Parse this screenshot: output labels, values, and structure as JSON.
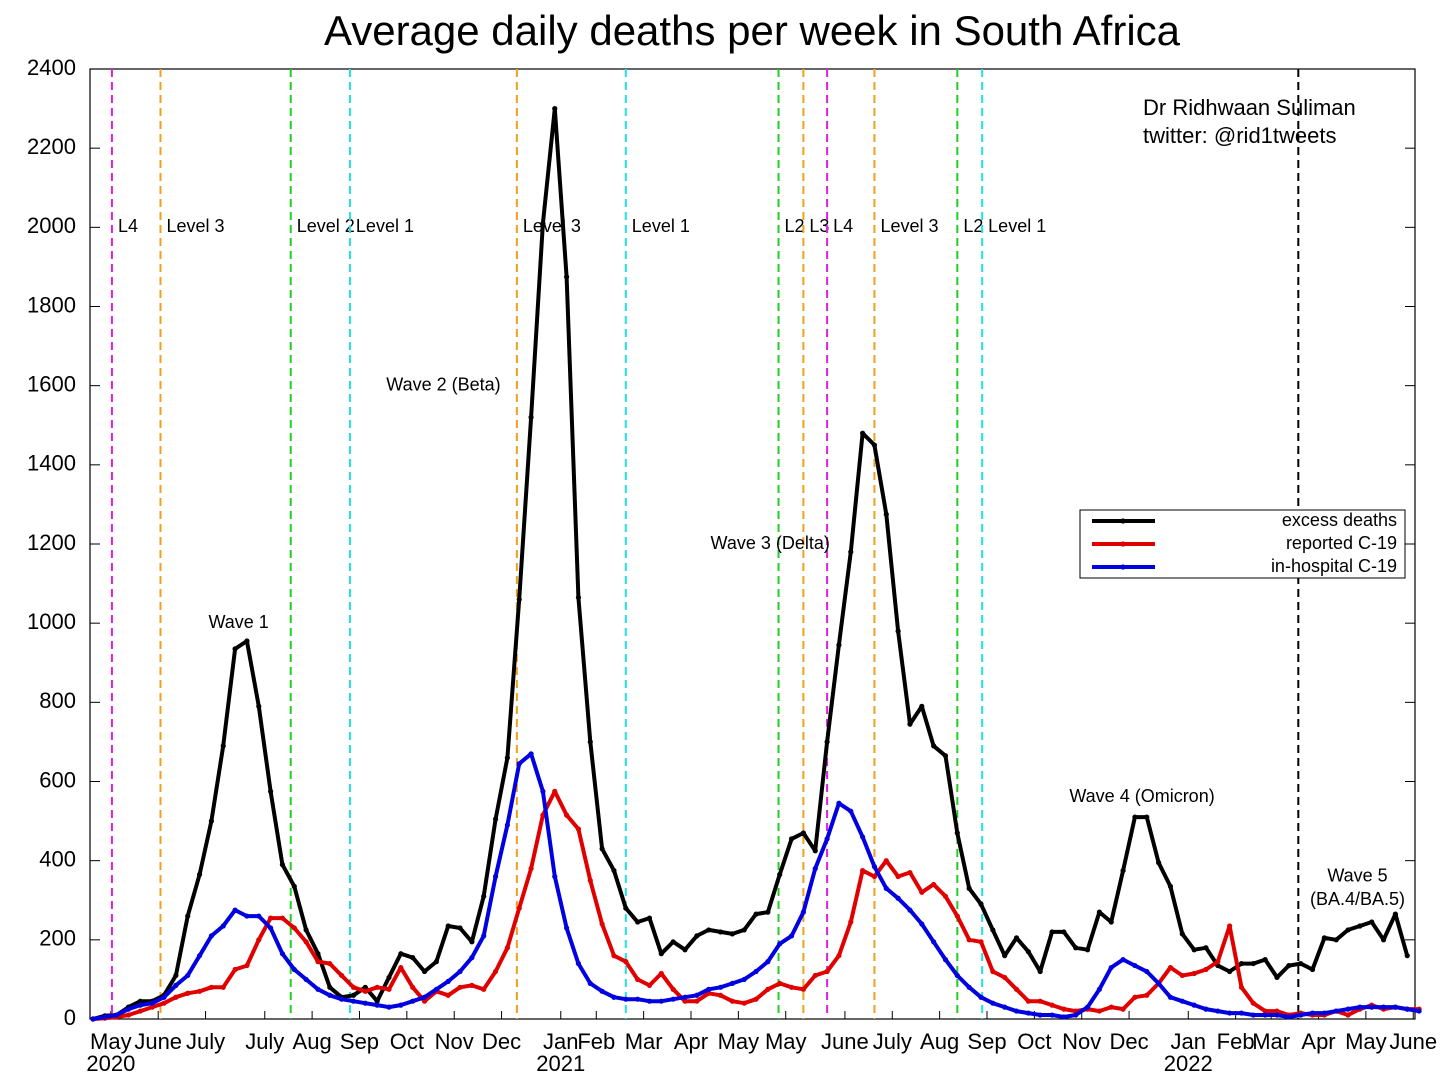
{
  "chart_data": {
    "type": "line",
    "title": "Average daily deaths per week in South Africa",
    "credit": [
      "Dr Ridhwaan Suliman",
      "twitter: @rid1tweets"
    ],
    "categories": [
      null,
      "May\n2020",
      null,
      null,
      null,
      "June",
      null,
      null,
      null,
      "July",
      null,
      null,
      null,
      null,
      "July",
      null,
      null,
      null,
      "Aug",
      null,
      null,
      null,
      "Sep",
      null,
      null,
      null,
      "Oct",
      null,
      null,
      null,
      "Nov",
      null,
      null,
      null,
      "Dec",
      null,
      null,
      null,
      null,
      "Jan\n2021",
      null,
      null,
      "Feb",
      null,
      null,
      null,
      "Mar",
      null,
      null,
      null,
      "Apr",
      null,
      null,
      null,
      "May",
      null,
      null,
      null,
      "May",
      null,
      null,
      null,
      null,
      "June",
      null,
      null,
      null,
      "July",
      null,
      null,
      null,
      "Aug",
      null,
      null,
      null,
      "Sep",
      null,
      null,
      null,
      "Oct",
      null,
      null,
      null,
      "Nov",
      null,
      null,
      null,
      "Dec",
      null,
      null,
      null,
      null,
      "Jan\n2022",
      null,
      null,
      null,
      "Feb",
      null,
      null,
      "Mar",
      null,
      null,
      null,
      "Apr",
      null,
      null,
      null,
      "May",
      null,
      null,
      null,
      "June",
      null
    ],
    "series": [
      {
        "name": "excess deaths",
        "color": "#000000",
        "values": [
          0,
          8,
          10,
          30,
          45,
          45,
          60,
          110,
          260,
          365,
          500,
          690,
          935,
          955,
          790,
          575,
          390,
          335,
          225,
          165,
          80,
          55,
          60,
          80,
          45,
          105,
          165,
          155,
          120,
          145,
          235,
          230,
          195,
          310,
          505,
          660,
          1060,
          1520,
          2010,
          2300,
          1875,
          1065,
          700,
          430,
          375,
          280,
          245,
          255,
          165,
          195,
          175,
          210,
          225,
          220,
          215,
          225,
          265,
          270,
          365,
          455,
          470,
          425,
          700,
          945,
          1180,
          1480,
          1450,
          1275,
          980,
          745,
          790,
          690,
          665,
          470,
          330,
          290,
          225,
          160,
          205,
          170,
          120,
          220,
          220,
          180,
          175,
          270,
          245,
          375,
          510,
          510,
          395,
          335,
          215,
          175,
          180,
          135,
          120,
          140,
          140,
          150,
          105,
          135,
          140,
          125,
          205,
          200,
          225,
          235,
          245,
          200,
          265,
          160,
          null
        ]
      },
      {
        "name": "reported C-19",
        "color": "#e00000",
        "values": [
          0,
          2,
          5,
          10,
          20,
          30,
          40,
          55,
          65,
          70,
          80,
          80,
          125,
          135,
          200,
          255,
          255,
          230,
          195,
          145,
          140,
          110,
          80,
          70,
          80,
          75,
          130,
          80,
          45,
          70,
          60,
          80,
          85,
          75,
          120,
          180,
          280,
          380,
          515,
          575,
          515,
          480,
          350,
          240,
          160,
          145,
          100,
          85,
          115,
          75,
          45,
          45,
          65,
          60,
          45,
          40,
          50,
          75,
          90,
          80,
          75,
          110,
          120,
          160,
          245,
          375,
          360,
          400,
          360,
          370,
          320,
          340,
          310,
          260,
          200,
          195,
          120,
          105,
          75,
          45,
          45,
          35,
          25,
          20,
          25,
          20,
          30,
          25,
          55,
          60,
          90,
          130,
          110,
          115,
          125,
          145,
          235,
          80,
          40,
          20,
          20,
          10,
          15,
          10,
          10,
          20,
          10,
          25,
          35,
          25,
          30,
          25,
          25
        ]
      },
      {
        "name": "in-hospital C-19",
        "color": "#0000e0",
        "values": [
          0,
          5,
          10,
          25,
          35,
          40,
          55,
          85,
          110,
          160,
          210,
          235,
          275,
          260,
          260,
          230,
          165,
          125,
          100,
          75,
          60,
          50,
          45,
          40,
          35,
          30,
          35,
          45,
          55,
          75,
          95,
          120,
          155,
          210,
          360,
          490,
          645,
          670,
          575,
          360,
          230,
          140,
          90,
          70,
          55,
          50,
          50,
          45,
          45,
          50,
          55,
          60,
          75,
          80,
          90,
          100,
          120,
          145,
          190,
          210,
          270,
          380,
          455,
          545,
          525,
          460,
          385,
          330,
          305,
          275,
          240,
          195,
          150,
          110,
          80,
          55,
          40,
          30,
          20,
          15,
          10,
          10,
          5,
          10,
          30,
          75,
          130,
          150,
          135,
          120,
          90,
          55,
          45,
          35,
          25,
          20,
          15,
          15,
          10,
          10,
          10,
          5,
          10,
          15,
          15,
          20,
          25,
          30,
          30,
          30,
          30,
          25,
          20
        ]
      }
    ],
    "ylim": [
      0,
      2400
    ],
    "yticks": [
      0,
      200,
      400,
      600,
      800,
      1000,
      1200,
      1400,
      1600,
      1800,
      2000,
      2200,
      2400
    ],
    "legend": "right",
    "level_lines": [
      {
        "x": 1.6,
        "label": "L4",
        "color": "#e020e0"
      },
      {
        "x": 5.7,
        "label": "Level 3",
        "color": "#f0a020"
      },
      {
        "x": 16.7,
        "label": "Level 2",
        "color": "#20d020"
      },
      {
        "x": 21.7,
        "label": "Level 1",
        "color": "#20e0e0"
      },
      {
        "x": 35.8,
        "label": "Level 3",
        "color": "#f0a020"
      },
      {
        "x": 45.0,
        "label": "Level 1",
        "color": "#20e0e0"
      },
      {
        "x": 57.9,
        "label": "L2",
        "color": "#20d020"
      },
      {
        "x": 60.0,
        "label": "L3",
        "color": "#f0a020"
      },
      {
        "x": 62.0,
        "label": "L4",
        "color": "#e020e0"
      },
      {
        "x": 66.0,
        "label": "Level 3",
        "color": "#f0a020"
      },
      {
        "x": 73.0,
        "label": "L2",
        "color": "#20d020"
      },
      {
        "x": 75.1,
        "label": "Level 1",
        "color": "#20e0e0"
      },
      {
        "x": 101.8,
        "color": "#000000"
      }
    ],
    "annotations": [
      {
        "text": "Wave 1",
        "x": 12.3,
        "y": 1000
      },
      {
        "text": "Wave 2 (Beta)",
        "x": 29.6,
        "y": 1600
      },
      {
        "text": "Wave 3 (Delta)",
        "x": 57.2,
        "y": 1200
      },
      {
        "text": "Wave 4 (Omicron)",
        "x": 88.6,
        "y": 560
      },
      {
        "text": "Wave 5",
        "x": 106.8,
        "y": 360
      },
      {
        "text": "(BA.4/BA.5)",
        "x": 106.8,
        "y": 300
      }
    ]
  }
}
